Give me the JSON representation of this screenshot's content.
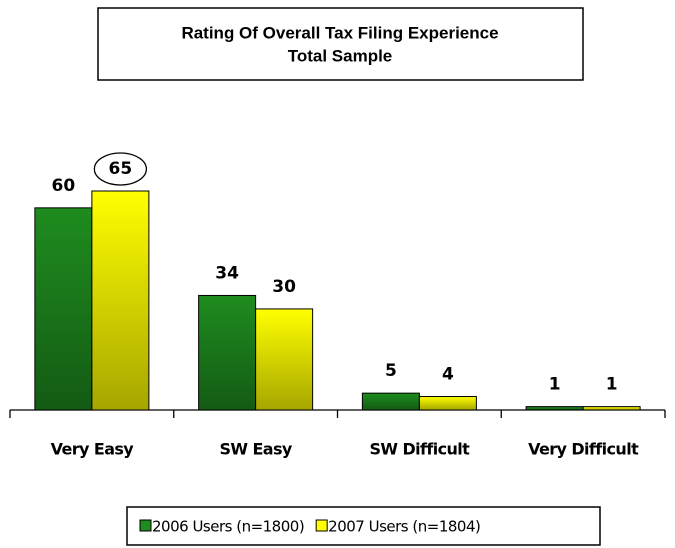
{
  "chart_data": {
    "type": "bar",
    "title": "Rating Of Overall Tax Filing Experience",
    "subtitle": "Total Sample",
    "categories": [
      "Very Easy",
      "SW Easy",
      "SW Difficult",
      "Very Difficult"
    ],
    "series": [
      {
        "name": "2006 Users (n=1800)",
        "color": "#1e8c1e",
        "values": [
          60,
          34,
          5,
          1
        ]
      },
      {
        "name": "2007 Users (n=1804)",
        "color": "#ffff00",
        "values": [
          65,
          30,
          4,
          1
        ]
      }
    ],
    "legend": "bottom"
  }
}
